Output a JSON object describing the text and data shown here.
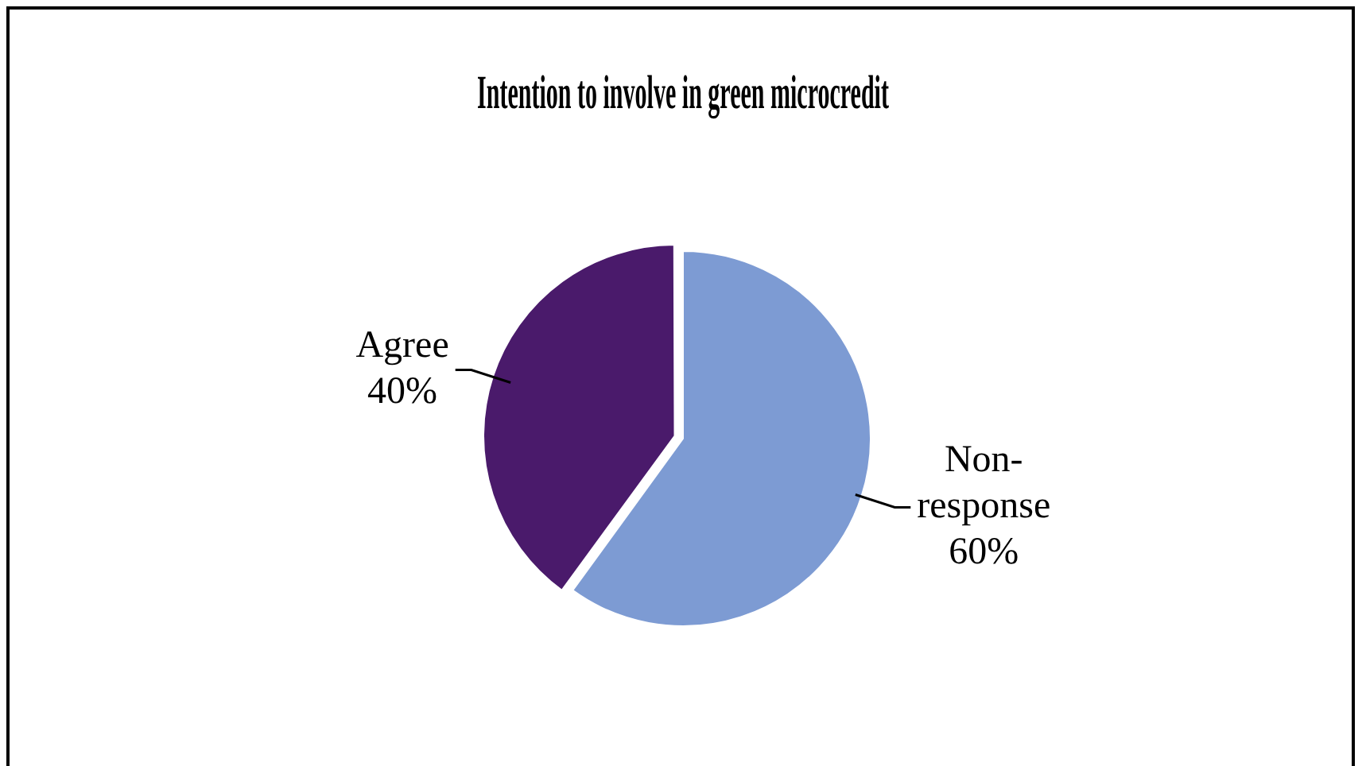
{
  "chart_data": {
    "type": "pie",
    "title": "Intention to involve in green microcredit",
    "categories": [
      "Non-response",
      "Agree"
    ],
    "values": [
      60,
      40
    ],
    "colors": [
      "#7d9bd3",
      "#4a1a6b"
    ],
    "value_labels": [
      "60%",
      "40%"
    ]
  }
}
